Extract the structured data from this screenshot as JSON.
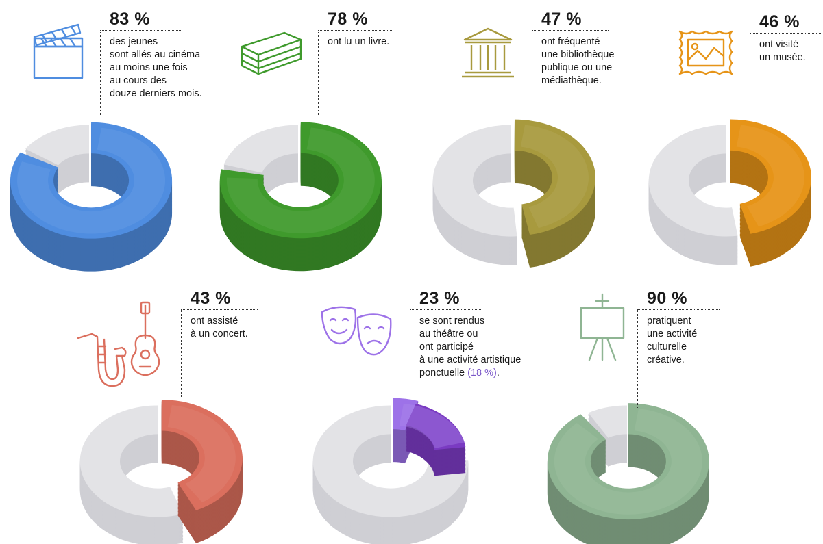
{
  "chart_data": [
    {
      "type": "pie",
      "value": 83,
      "value_label": "83 %",
      "description": [
        "des jeunes",
        "sont allés au cinéma",
        "au moins une fois",
        "au cours des",
        "douze derniers mois."
      ],
      "color": "#4f8de0",
      "icon": "clapperboard-icon"
    },
    {
      "type": "pie",
      "value": 78,
      "value_label": "78 %",
      "description": [
        "ont lu un livre."
      ],
      "color": "#3f9a2c",
      "icon": "books-icon"
    },
    {
      "type": "pie",
      "value": 47,
      "value_label": "47 %",
      "description": [
        "ont fréquenté",
        "une bibliothèque",
        "publique ou une",
        "médiathèque."
      ],
      "color": "#a89a3e",
      "icon": "library-building-icon"
    },
    {
      "type": "pie",
      "value": 46,
      "value_label": "46 %",
      "description": [
        "ont visité",
        "un musée."
      ],
      "color": "#e69418",
      "icon": "framed-painting-icon"
    },
    {
      "type": "pie",
      "value": 43,
      "value_label": "43 %",
      "description": [
        "ont assisté",
        "à un concert."
      ],
      "color": "#db6f5e",
      "icon": "saxophone-guitar-icon"
    },
    {
      "type": "pie",
      "value": 23,
      "value_label": "23 %",
      "sub_value": 18,
      "description": [
        "se sont rendus",
        "au théâtre ou",
        "ont participé",
        "à une activité artistique",
        "ponctuelle "
      ],
      "description_highlight": "(18 %)",
      "description_end": ".",
      "color": "#9d72e8",
      "sub_color": "#7a3bc2",
      "icon": "theatre-masks-icon"
    },
    {
      "type": "pie",
      "value": 90,
      "value_label": "90 %",
      "description": [
        "pratiquent",
        "une activité",
        "culturelle",
        "créative."
      ],
      "color": "#8fb593",
      "icon": "easel-icon"
    }
  ],
  "colors": {
    "remainder": "#e3e3e6",
    "remainder_side": "#cfcfd4",
    "accent_purple": "#7b58c9"
  }
}
